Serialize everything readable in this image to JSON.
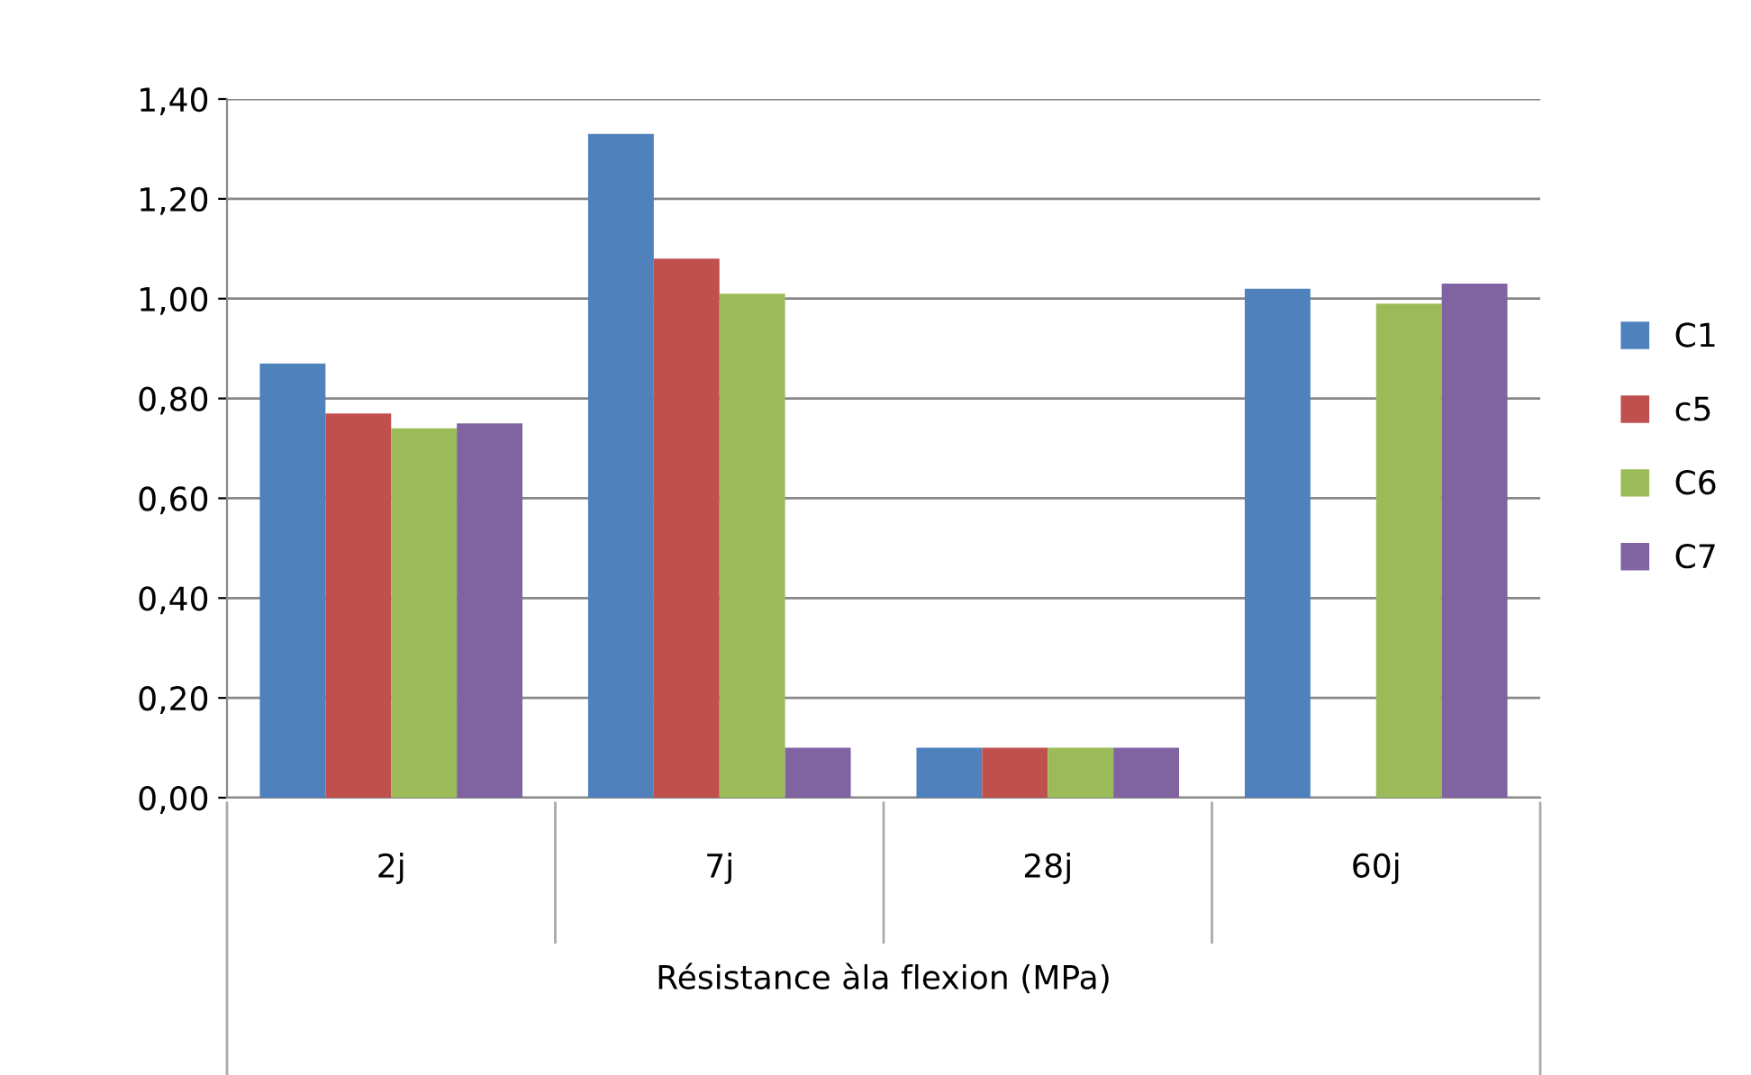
{
  "chart_data": {
    "type": "bar",
    "xlabel": "Résistance àla flexion (MPa)",
    "categories": [
      "2j",
      "7j",
      "28j",
      "60j"
    ],
    "series": [
      {
        "name": "C1",
        "color": "#4f81bd",
        "values": [
          0.87,
          1.33,
          0.1,
          1.02
        ]
      },
      {
        "name": "c5",
        "color": "#c0504d",
        "values": [
          0.77,
          1.08,
          0.1,
          null
        ]
      },
      {
        "name": "C6",
        "color": "#9bbb59",
        "values": [
          0.74,
          1.01,
          0.1,
          0.99
        ]
      },
      {
        "name": "C7",
        "color": "#8064a2",
        "values": [
          0.75,
          0.1,
          0.1,
          1.03
        ]
      }
    ],
    "ylim": [
      0,
      1.4
    ],
    "yticks": [
      {
        "value": 0,
        "label": "0,00"
      },
      {
        "value": 0.2,
        "label": "0,20"
      },
      {
        "value": 0.4,
        "label": "0,40"
      },
      {
        "value": 0.6,
        "label": "0,60"
      },
      {
        "value": 0.8,
        "label": "0,80"
      },
      {
        "value": 1.0,
        "label": "1,00"
      },
      {
        "value": 1.2,
        "label": "1,20"
      },
      {
        "value": 1.4,
        "label": "1,40"
      }
    ],
    "grid": "y",
    "legend": "right"
  }
}
